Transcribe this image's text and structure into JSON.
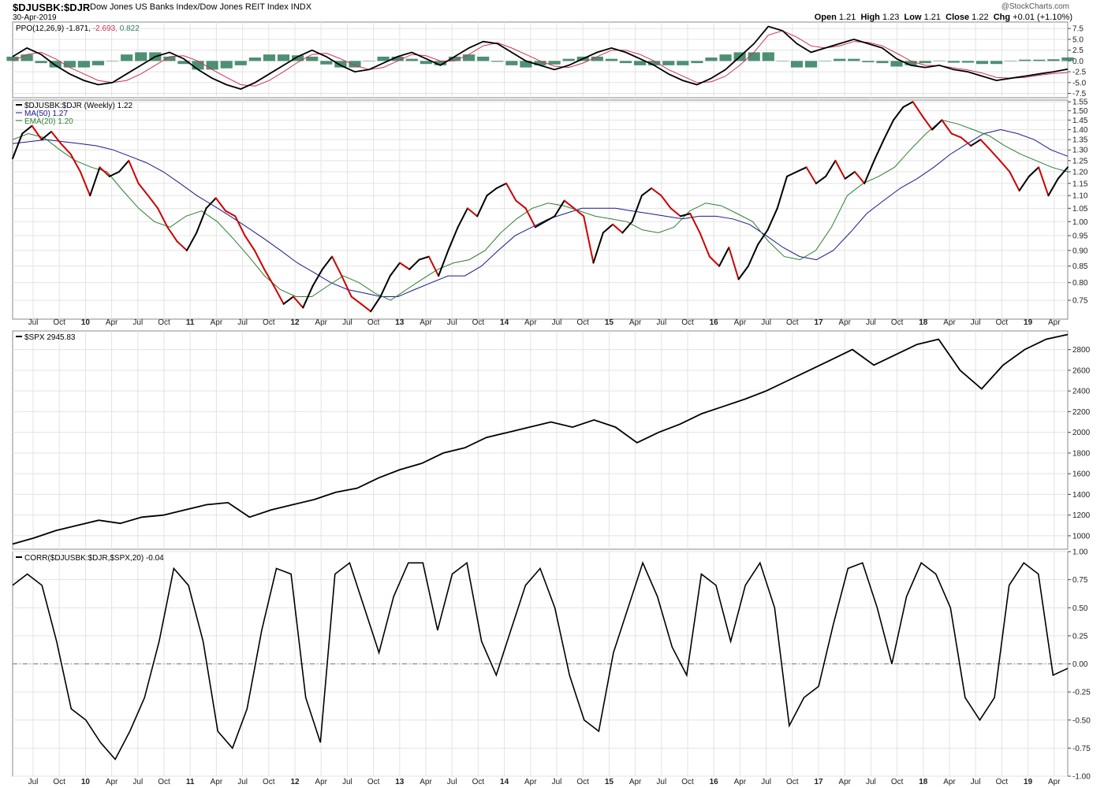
{
  "header": {
    "symbol": "$DJUSBK:$DJR",
    "description": "Dow Jones US Banks Index/Dow Jones REIT Index",
    "exchange": "INDX",
    "date": "30-Apr-2019",
    "watermark": "@StockCharts.com",
    "open_label": "Open",
    "open": "1.21",
    "high_label": "High",
    "high": "1.23",
    "low_label": "Low",
    "low": "1.21",
    "close_label": "Close",
    "close": "1.22",
    "chg_label": "Chg",
    "chg": "+0.01 (+1.10%)"
  },
  "x_axis_labels": [
    "Jul",
    "Oct",
    "10",
    "Apr",
    "Jul",
    "Oct",
    "11",
    "Apr",
    "Jul",
    "Oct",
    "12",
    "Apr",
    "Jul",
    "Oct",
    "13",
    "Apr",
    "Jul",
    "Oct",
    "14",
    "Apr",
    "Jul",
    "Oct",
    "15",
    "Apr",
    "Jul",
    "Oct",
    "16",
    "Apr",
    "Jul",
    "Oct",
    "17",
    "Apr",
    "Jul",
    "Oct",
    "18",
    "Apr",
    "Jul",
    "Oct",
    "19",
    "Apr"
  ],
  "colors": {
    "price_up": "#000000",
    "price_down": "#cc0000",
    "ma50": "#1a1a8c",
    "ema20": "#2e7d2e",
    "ppo": "#000000",
    "ppo_signal": "#cc3355",
    "histogram": "#2e7d5b",
    "grid": "#e3e3e3"
  },
  "chart_data": [
    {
      "panel": "ppo",
      "type": "line",
      "label": "PPO(12,26,9)",
      "ppo_value": "-1.871",
      "signal_value": "-2.693",
      "hist_value": "0.822",
      "y_ticks": [
        "7.5",
        "5.0",
        "2.5",
        "0.0",
        "-2.5",
        "-5.0",
        "-7.5"
      ],
      "ylim": [
        -8.5,
        9
      ],
      "series": [
        {
          "name": "PPO",
          "values": [
            1,
            3,
            1.5,
            -1,
            -3,
            -4.5,
            -5.5,
            -5,
            -3,
            -1,
            1,
            2,
            0.5,
            -2,
            -4,
            -5.5,
            -6.5,
            -5,
            -3,
            -1,
            1,
            2.5,
            1,
            -1,
            -2.5,
            -2,
            -0.5,
            1,
            2,
            0.5,
            -1,
            1,
            3,
            4.5,
            4,
            2,
            0,
            -1,
            -2,
            -1,
            0.5,
            2,
            3,
            2,
            0.5,
            -1,
            -3,
            -4.5,
            -5.5,
            -4,
            -2,
            1,
            4,
            8,
            7,
            4,
            2,
            3,
            4,
            5,
            4,
            3,
            0.5,
            -1,
            -1.5,
            -1,
            -2,
            -2.5,
            -3.5,
            -4.5,
            -4,
            -3.5,
            -3,
            -2.5,
            -1.9
          ]
        },
        {
          "name": "Signal",
          "values": [
            0,
            1.5,
            2,
            0.5,
            -1.5,
            -3,
            -4.5,
            -5,
            -4.5,
            -3,
            -1,
            1,
            1.2,
            0,
            -2,
            -3.8,
            -5.5,
            -5.8,
            -4.5,
            -2.5,
            -0.3,
            1.5,
            1.8,
            0.5,
            -1,
            -2,
            -1.5,
            0,
            1.5,
            1.2,
            0,
            0,
            1.5,
            3.5,
            4.2,
            3,
            1.5,
            0,
            -1.2,
            -1.5,
            -0.5,
            1,
            2.5,
            2.5,
            1.5,
            0,
            -2,
            -3.5,
            -5,
            -4.8,
            -3.5,
            -1,
            2,
            6,
            7,
            5.5,
            3.5,
            3,
            3.5,
            4.5,
            4.3,
            3.5,
            1.8,
            0,
            -1,
            -1.1,
            -1.6,
            -2.1,
            -2.8,
            -3.8,
            -4,
            -3.8,
            -3.3,
            -2.9,
            -2.693
          ]
        },
        {
          "name": "Histogram",
          "values": [
            1,
            1.5,
            -0.5,
            -1.5,
            -1.5,
            -1.5,
            -1,
            0,
            1.5,
            2,
            2,
            1,
            -0.7,
            -2,
            -2,
            -1.7,
            -1,
            0.8,
            1.5,
            1.5,
            1.3,
            1,
            -0.8,
            -1.5,
            -1.5,
            0,
            1,
            1,
            0.5,
            -0.7,
            -1,
            1,
            1.5,
            1,
            -0.2,
            -1,
            -1.5,
            -1,
            -0.8,
            0.5,
            1,
            1,
            0.5,
            -0.5,
            -1,
            -1,
            -1,
            -1,
            -0.5,
            0.8,
            1.5,
            2,
            2,
            2,
            0,
            -1.5,
            -1.5,
            0,
            0.5,
            0.5,
            -0.3,
            -0.5,
            -1.3,
            -1,
            -0.5,
            0.1,
            -0.4,
            -0.4,
            -0.7,
            -0.7,
            0,
            0.3,
            0.3,
            0.4,
            0.822
          ]
        }
      ]
    },
    {
      "panel": "ratio",
      "type": "line",
      "label": "$DJUSBK:$DJR (Weekly)",
      "last_value": "1.22",
      "ma_label": "MA(50)",
      "ma_value": "1.27",
      "ema_label": "EMA(20)",
      "ema_value": "1.20",
      "scale": "log",
      "y_ticks": [
        "1.55",
        "1.50",
        "1.45",
        "1.40",
        "1.35",
        "1.30",
        "1.25",
        "1.20",
        "1.15",
        "1.10",
        "1.05",
        "1.00",
        "0.95",
        "0.90",
        "0.85",
        "0.80",
        "0.75"
      ],
      "ylim": [
        0.7,
        1.56
      ],
      "series": [
        {
          "name": "$DJUSBK:$DJR",
          "values": [
            1.26,
            1.38,
            1.42,
            1.35,
            1.39,
            1.33,
            1.28,
            1.2,
            1.1,
            1.22,
            1.18,
            1.2,
            1.25,
            1.15,
            1.1,
            1.05,
            0.98,
            0.93,
            0.9,
            0.96,
            1.05,
            1.09,
            1.04,
            1.02,
            0.95,
            0.9,
            0.84,
            0.79,
            0.74,
            0.76,
            0.73,
            0.79,
            0.84,
            0.88,
            0.82,
            0.76,
            0.74,
            0.72,
            0.76,
            0.82,
            0.86,
            0.84,
            0.87,
            0.88,
            0.82,
            0.9,
            0.98,
            1.05,
            1.02,
            1.1,
            1.13,
            1.15,
            1.08,
            1.05,
            0.98,
            1.0,
            1.02,
            1.08,
            1.05,
            1.02,
            0.86,
            0.96,
            0.99,
            0.96,
            1.0,
            1.1,
            1.13,
            1.1,
            1.05,
            1.02,
            1.03,
            0.96,
            0.88,
            0.85,
            0.91,
            0.81,
            0.85,
            0.92,
            0.97,
            1.05,
            1.18,
            1.2,
            1.22,
            1.15,
            1.18,
            1.25,
            1.17,
            1.2,
            1.15,
            1.25,
            1.35,
            1.45,
            1.52,
            1.55,
            1.47,
            1.4,
            1.45,
            1.38,
            1.36,
            1.32,
            1.35,
            1.3,
            1.25,
            1.2,
            1.12,
            1.18,
            1.22,
            1.1,
            1.17,
            1.22
          ]
        },
        {
          "name": "MA(50)",
          "values": [
            1.33,
            1.34,
            1.35,
            1.34,
            1.33,
            1.32,
            1.3,
            1.27,
            1.24,
            1.2,
            1.15,
            1.1,
            1.06,
            1.02,
            0.98,
            0.94,
            0.9,
            0.86,
            0.83,
            0.8,
            0.78,
            0.77,
            0.76,
            0.76,
            0.78,
            0.8,
            0.82,
            0.82,
            0.85,
            0.9,
            0.95,
            0.98,
            1.01,
            1.03,
            1.05,
            1.05,
            1.05,
            1.04,
            1.03,
            1.02,
            1.01,
            1.02,
            1.02,
            1.01,
            0.99,
            0.95,
            0.91,
            0.88,
            0.87,
            0.9,
            0.96,
            1.03,
            1.08,
            1.13,
            1.17,
            1.22,
            1.28,
            1.33,
            1.38,
            1.4,
            1.38,
            1.35,
            1.3,
            1.27
          ]
        },
        {
          "name": "EMA(20)",
          "values": [
            1.35,
            1.38,
            1.36,
            1.3,
            1.25,
            1.22,
            1.2,
            1.12,
            1.05,
            1.0,
            0.98,
            1.02,
            1.04,
            1.0,
            0.94,
            0.88,
            0.82,
            0.78,
            0.76,
            0.76,
            0.79,
            0.82,
            0.8,
            0.77,
            0.75,
            0.78,
            0.81,
            0.84,
            0.86,
            0.87,
            0.9,
            0.96,
            1.01,
            1.05,
            1.07,
            1.06,
            1.04,
            1.02,
            1.01,
            1.0,
            0.97,
            0.96,
            0.98,
            1.04,
            1.07,
            1.06,
            1.03,
            1.0,
            0.93,
            0.88,
            0.87,
            0.9,
            0.98,
            1.1,
            1.15,
            1.18,
            1.22,
            1.3,
            1.38,
            1.45,
            1.43,
            1.4,
            1.37,
            1.32,
            1.28,
            1.25,
            1.22,
            1.2
          ]
        }
      ]
    },
    {
      "panel": "spx",
      "type": "line",
      "label": "$SPX",
      "last_value": "2945.83",
      "y_ticks": [
        "2800",
        "2600",
        "2400",
        "2200",
        "2000",
        "1800",
        "1600",
        "1400",
        "1200",
        "1000"
      ],
      "ylim": [
        870,
        2980
      ],
      "series": [
        {
          "name": "$SPX",
          "values": [
            920,
            980,
            1050,
            1100,
            1150,
            1120,
            1180,
            1200,
            1250,
            1300,
            1320,
            1180,
            1250,
            1300,
            1350,
            1420,
            1460,
            1560,
            1640,
            1700,
            1800,
            1850,
            1950,
            2000,
            2050,
            2100,
            2050,
            2120,
            2050,
            1900,
            2000,
            2080,
            2180,
            2250,
            2320,
            2400,
            2500,
            2600,
            2700,
            2800,
            2650,
            2750,
            2850,
            2900,
            2600,
            2420,
            2650,
            2800,
            2900,
            2945.83
          ]
        }
      ]
    },
    {
      "panel": "correlation",
      "type": "line",
      "label": "CORR($DJUSBK:$DJR,$SPX,20)",
      "last_value": "-0.04",
      "y_ticks": [
        "1.00",
        "0.75",
        "0.50",
        "0.25",
        "0.00",
        "-0.25",
        "-0.50",
        "-0.75",
        "-1.00"
      ],
      "ylim": [
        -1.0,
        1.0
      ],
      "series": [
        {
          "name": "Correlation",
          "values": [
            0.7,
            0.8,
            0.7,
            0.2,
            -0.4,
            -0.5,
            -0.7,
            -0.85,
            -0.6,
            -0.3,
            0.2,
            0.85,
            0.7,
            0.2,
            -0.6,
            -0.75,
            -0.4,
            0.3,
            0.85,
            0.8,
            -0.3,
            -0.7,
            0.8,
            0.9,
            0.5,
            0.1,
            0.6,
            0.9,
            0.9,
            0.3,
            0.8,
            0.9,
            0.2,
            -0.1,
            0.3,
            0.7,
            0.85,
            0.5,
            -0.1,
            -0.5,
            -0.6,
            0.1,
            0.5,
            0.9,
            0.6,
            0.15,
            -0.1,
            0.8,
            0.7,
            0.2,
            0.7,
            0.9,
            0.5,
            -0.55,
            -0.3,
            -0.2,
            0.35,
            0.85,
            0.9,
            0.5,
            0.0,
            0.6,
            0.9,
            0.8,
            0.5,
            -0.3,
            -0.5,
            -0.3,
            0.7,
            0.9,
            0.8,
            -0.1,
            -0.04
          ]
        }
      ]
    }
  ]
}
